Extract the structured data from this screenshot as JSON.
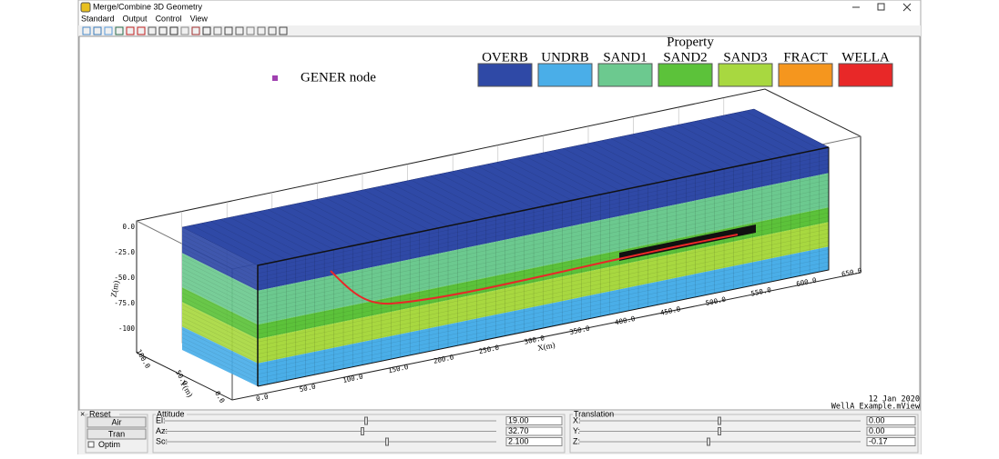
{
  "window": {
    "title": "Merge/Combine 3D Geometry",
    "menu": [
      "Standard",
      "Output",
      "Control",
      "View"
    ]
  },
  "legend": {
    "title": "Property",
    "items": [
      {
        "name": "OVERB",
        "color": "#2f49a6"
      },
      {
        "name": "UNDRB",
        "color": "#4aaee8"
      },
      {
        "name": "SAND1",
        "color": "#6cc98f"
      },
      {
        "name": "SAND2",
        "color": "#5cc23a"
      },
      {
        "name": "SAND3",
        "color": "#a8d840"
      },
      {
        "name": "FRACT",
        "color": "#f5961e"
      },
      {
        "name": "WELLA",
        "color": "#e82828"
      }
    ]
  },
  "annotation": {
    "label": "GENER node",
    "color": "#a040b0"
  },
  "axes": {
    "z": {
      "label": "Z(m)",
      "ticks": [
        "0.0",
        "-25.0",
        "-50.0",
        "-75.0",
        "-100"
      ]
    },
    "x": {
      "label": "X(m)",
      "ticks": [
        "0.0",
        "50.0",
        "100.0",
        "150.0",
        "200.0",
        "250.0",
        "300.0",
        "350.0",
        "400.0",
        "450.0",
        "500.0",
        "550.0",
        "600.0",
        "650.0"
      ]
    },
    "y": {
      "label": "Y(m)",
      "ticks": [
        "100.0",
        "50.0",
        "0.0"
      ]
    }
  },
  "footer": {
    "date": "12 Jan 2020",
    "file": "WellA Example.mView"
  },
  "controls": {
    "reset": {
      "title": "Reset",
      "buttons": [
        "Air",
        "Tran"
      ],
      "checkbox": "Optim"
    },
    "attitude": {
      "title": "Attitude",
      "fields": [
        {
          "label": "El:",
          "value": "19.00"
        },
        {
          "label": "Az:",
          "value": "32.70"
        },
        {
          "label": "Sc:",
          "value": "2.100"
        }
      ]
    },
    "translation": {
      "title": "Translation",
      "fields": [
        {
          "label": "X:",
          "value": "0.00"
        },
        {
          "label": "Y:",
          "value": "0.00"
        },
        {
          "label": "Z:",
          "value": "-0.17"
        }
      ]
    }
  }
}
